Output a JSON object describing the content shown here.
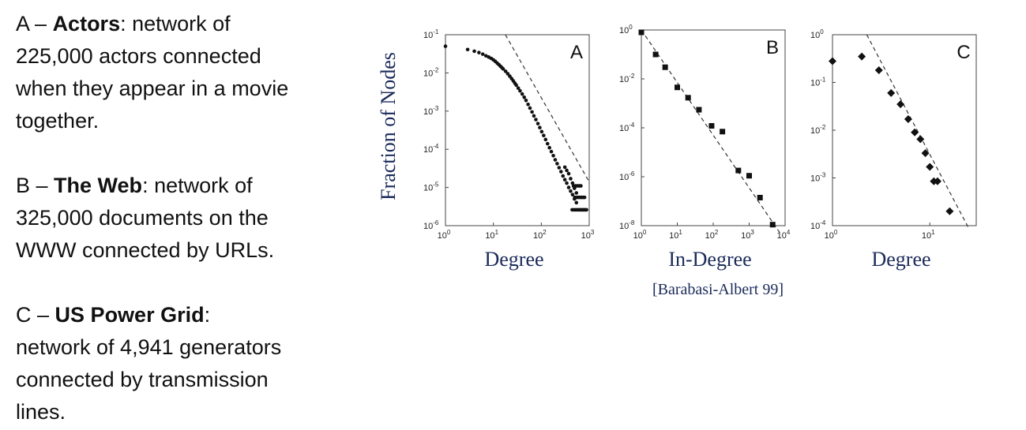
{
  "descriptions": [
    {
      "letter": "A –",
      "name": "Actors",
      "line1_rest": ": network of",
      "lines": [
        "225,000 actors connected",
        "when they appear in a movie",
        "together."
      ]
    },
    {
      "letter": "B –",
      "name": "The Web",
      "line1_rest": ": network of",
      "lines": [
        "325,000 documents on the",
        "WWW connected by URLs."
      ]
    },
    {
      "letter": "C –",
      "name": "US Power Grid",
      "line1_rest": ":",
      "lines": [
        "network of 4,941 generators",
        "connected by transmission",
        "lines."
      ]
    }
  ],
  "ylabel": "Fraction of Nodes",
  "citation": "[Barabasi-Albert 99]",
  "chart_data": [
    {
      "type": "scatter",
      "panel_label": "A",
      "xlabel": "Degree",
      "x_scale": "log",
      "y_scale": "log",
      "xlim": [
        1,
        1000
      ],
      "ylim": [
        1e-06,
        0.1
      ],
      "x_ticks": [
        {
          "v": 1,
          "b": "10",
          "e": "0"
        },
        {
          "v": 10,
          "b": "10",
          "e": "1"
        },
        {
          "v": 100,
          "b": "10",
          "e": "2"
        },
        {
          "v": 1000,
          "b": "10",
          "e": "3"
        }
      ],
      "y_ticks": [
        {
          "v": 0.1,
          "b": "10",
          "e": "-1"
        },
        {
          "v": 0.01,
          "b": "10",
          "e": "-2"
        },
        {
          "v": 0.001,
          "b": "10",
          "e": "-3"
        },
        {
          "v": 0.0001,
          "b": "10",
          "e": "-4"
        },
        {
          "v": 1e-05,
          "b": "10",
          "e": "-5"
        },
        {
          "v": 1e-06,
          "b": "10",
          "e": "-6"
        }
      ],
      "fit_line": [
        [
          17.8,
          0.1
        ],
        [
          1000,
          1.4e-05
        ]
      ],
      "marker": "circle",
      "points": [
        [
          1,
          0.05
        ],
        [
          2.9,
          0.041
        ],
        [
          4,
          0.037
        ],
        [
          5,
          0.034
        ],
        [
          6,
          0.031
        ],
        [
          7,
          0.028
        ],
        [
          8,
          0.026
        ],
        [
          9,
          0.024
        ],
        [
          10,
          0.022
        ],
        [
          11,
          0.02
        ],
        [
          12,
          0.018
        ],
        [
          13,
          0.0165
        ],
        [
          14,
          0.015
        ],
        [
          15,
          0.0138
        ],
        [
          16,
          0.0127
        ],
        [
          18,
          0.011
        ],
        [
          20,
          0.0095
        ],
        [
          22,
          0.0082
        ],
        [
          24,
          0.0071
        ],
        [
          26,
          0.0062
        ],
        [
          28,
          0.0054
        ],
        [
          30,
          0.0048
        ],
        [
          33,
          0.004
        ],
        [
          36,
          0.0034
        ],
        [
          40,
          0.0028
        ],
        [
          44,
          0.0023
        ],
        [
          48,
          0.0019
        ],
        [
          53,
          0.0015
        ],
        [
          58,
          0.0012
        ],
        [
          64,
          0.00095
        ],
        [
          70,
          0.00075
        ],
        [
          77,
          0.0006
        ],
        [
          85,
          0.00047
        ],
        [
          93,
          0.00037
        ],
        [
          102,
          0.00029
        ],
        [
          112,
          0.00023
        ],
        [
          123,
          0.00018
        ],
        [
          135,
          0.00014
        ],
        [
          148,
          0.00011
        ],
        [
          162,
          8.7e-05
        ],
        [
          178,
          6.8e-05
        ],
        [
          195,
          5.3e-05
        ],
        [
          214,
          4.2e-05
        ],
        [
          235,
          3.3e-05
        ],
        [
          258,
          2.6e-05
        ],
        [
          283,
          2e-05
        ],
        [
          310,
          1.6e-05
        ],
        [
          340,
          1.3e-05
        ],
        [
          373,
          1e-05
        ],
        [
          409,
          8e-06
        ],
        [
          449,
          6.5e-06
        ],
        [
          492,
          5e-06
        ],
        [
          540,
          4e-06
        ],
        [
          310,
          3.4e-05
        ],
        [
          340,
          2.8e-05
        ],
        [
          373,
          2.3e-05
        ],
        [
          409,
          1.7e-05
        ],
        [
          449,
          1.3e-05
        ],
        [
          492,
          9.5e-06
        ],
        [
          540,
          7.2e-06
        ],
        [
          440,
          2.6e-06
        ],
        [
          480,
          2.6e-06
        ],
        [
          520,
          2.6e-06
        ],
        [
          560,
          2.6e-06
        ],
        [
          600,
          2.6e-06
        ],
        [
          640,
          2.6e-06
        ],
        [
          680,
          2.6e-06
        ],
        [
          720,
          2.6e-06
        ],
        [
          760,
          2.6e-06
        ],
        [
          800,
          2.6e-06
        ],
        [
          840,
          2.6e-06
        ],
        [
          880,
          2.6e-06
        ],
        [
          500,
          5.5e-06
        ],
        [
          550,
          5.5e-06
        ],
        [
          600,
          5.5e-06
        ],
        [
          650,
          5.5e-06
        ],
        [
          700,
          5.5e-06
        ],
        [
          750,
          5.5e-06
        ],
        [
          800,
          5.5e-06
        ],
        [
          470,
          1.1e-05
        ],
        [
          520,
          1.1e-05
        ],
        [
          570,
          1.1e-05
        ],
        [
          620,
          1.1e-05
        ],
        [
          670,
          1.1e-05
        ]
      ]
    },
    {
      "type": "scatter",
      "panel_label": "B",
      "xlabel": "In-Degree",
      "x_scale": "log",
      "y_scale": "log",
      "xlim": [
        1,
        10000
      ],
      "ylim": [
        1e-08,
        1
      ],
      "x_ticks": [
        {
          "v": 1,
          "b": "10",
          "e": "0"
        },
        {
          "v": 10,
          "b": "10",
          "e": "1"
        },
        {
          "v": 100,
          "b": "10",
          "e": "2"
        },
        {
          "v": 1000,
          "b": "10",
          "e": "3"
        },
        {
          "v": 10000,
          "b": "10",
          "e": "4"
        }
      ],
      "y_ticks": [
        {
          "v": 1,
          "b": "10",
          "e": "0"
        },
        {
          "v": 0.01,
          "b": "10",
          "e": "-2"
        },
        {
          "v": 0.0001,
          "b": "10",
          "e": "-4"
        },
        {
          "v": 1e-06,
          "b": "10",
          "e": "-6"
        },
        {
          "v": 1e-08,
          "b": "10",
          "e": "-8"
        }
      ],
      "fit_line": [
        [
          1,
          1
        ],
        [
          8000,
          4e-09
        ]
      ],
      "marker": "square",
      "points": [
        [
          1,
          0.8
        ],
        [
          2.5,
          0.1
        ],
        [
          4.6,
          0.03
        ],
        [
          10,
          0.0045
        ],
        [
          20,
          0.0017
        ],
        [
          40,
          0.00055
        ],
        [
          90,
          0.00012
        ],
        [
          180,
          7e-05
        ],
        [
          500,
          1.8e-06
        ],
        [
          1000,
          1.1e-06
        ],
        [
          2000,
          1.4e-07
        ],
        [
          4500,
          1.1e-08
        ]
      ]
    },
    {
      "type": "scatter",
      "panel_label": "C",
      "xlabel": "Degree",
      "x_scale": "log",
      "y_scale": "log",
      "xlim": [
        1,
        30
      ],
      "ylim": [
        0.0001,
        1
      ],
      "x_ticks": [
        {
          "v": 1,
          "b": "10",
          "e": "0"
        },
        {
          "v": 10,
          "b": "10",
          "e": "1"
        }
      ],
      "y_ticks": [
        {
          "v": 1,
          "b": "10",
          "e": "0"
        },
        {
          "v": 0.1,
          "b": "10",
          "e": "-1"
        },
        {
          "v": 0.01,
          "b": "10",
          "e": "-2"
        },
        {
          "v": 0.001,
          "b": "10",
          "e": "-3"
        },
        {
          "v": 0.0001,
          "b": "10",
          "e": "-4"
        }
      ],
      "fit_line": [
        [
          2.25,
          1
        ],
        [
          25,
          9e-05
        ]
      ],
      "marker": "diamond",
      "points": [
        [
          1,
          0.28
        ],
        [
          2,
          0.35
        ],
        [
          3,
          0.18
        ],
        [
          4,
          0.06
        ],
        [
          5,
          0.035
        ],
        [
          6,
          0.017
        ],
        [
          7,
          0.009
        ],
        [
          8,
          0.0065
        ],
        [
          9,
          0.0033
        ],
        [
          10,
          0.0017
        ],
        [
          11,
          0.00085
        ],
        [
          12,
          0.00085
        ],
        [
          16,
          0.0002
        ]
      ]
    }
  ]
}
